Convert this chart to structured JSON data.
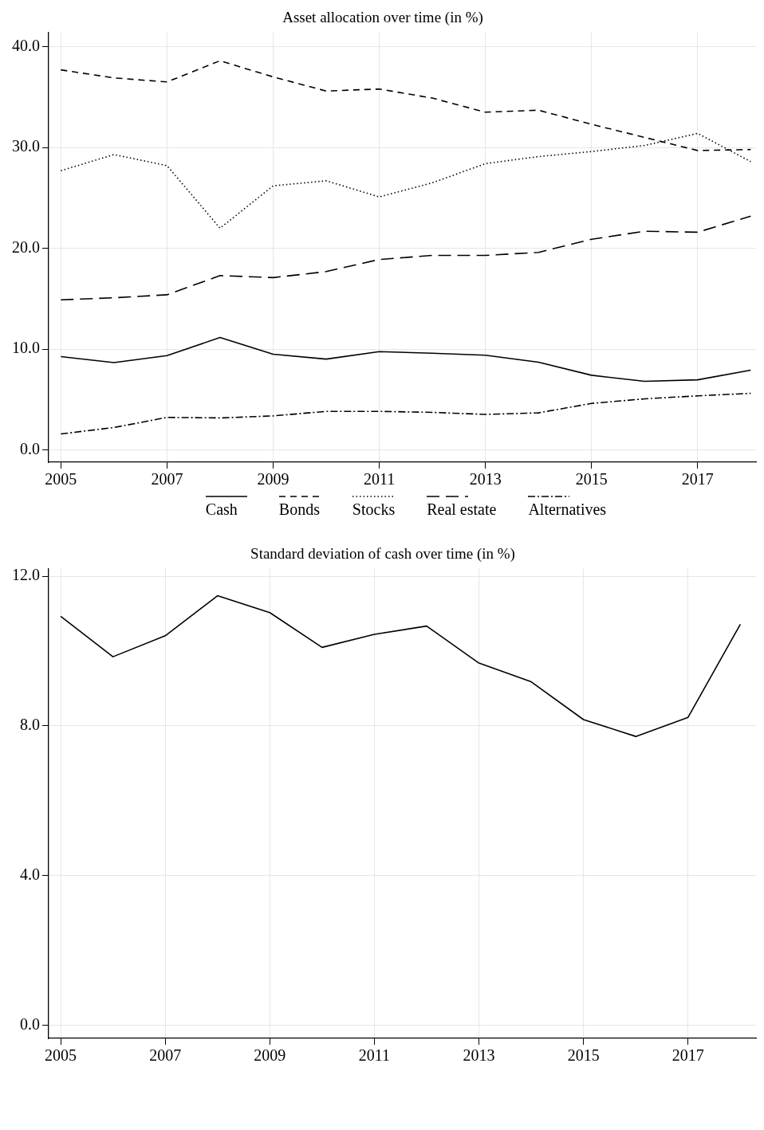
{
  "chart_data": [
    {
      "type": "line",
      "title": "Asset allocation over time (in %)",
      "x": [
        2005,
        2006,
        2007,
        2008,
        2009,
        2010,
        2011,
        2012,
        2013,
        2014,
        2015,
        2016,
        2017,
        2018
      ],
      "xlim": [
        2004.77,
        2018.1
      ],
      "xticks": [
        2005,
        2007,
        2009,
        2011,
        2013,
        2015,
        2017
      ],
      "ylim": [
        -1.2,
        41.4
      ],
      "yticks": [
        {
          "value": 0,
          "label": "0.0"
        },
        {
          "value": 10,
          "label": "10.0"
        },
        {
          "value": 20,
          "label": "20.0"
        },
        {
          "value": 30,
          "label": "30.0"
        },
        {
          "value": 40,
          "label": "40.0"
        }
      ],
      "grid": true,
      "legend": "bottom",
      "marker": "none",
      "series": [
        {
          "name": "Cash",
          "color": "#000000",
          "line_style": "solid",
          "values": [
            9.27,
            8.67,
            9.37,
            11.16,
            9.51,
            9.02,
            9.76,
            9.61,
            9.41,
            8.72,
            7.42,
            6.82,
            6.97,
            7.92
          ]
        },
        {
          "name": "Bonds",
          "color": "#000000",
          "line_style": "dashed",
          "values": [
            37.7,
            36.9,
            36.5,
            38.6,
            37.0,
            35.6,
            35.8,
            34.9,
            33.5,
            33.7,
            32.3,
            31.0,
            29.7,
            29.8
          ]
        },
        {
          "name": "Stocks",
          "color": "#000000",
          "line_style": "dotted",
          "values": [
            27.7,
            29.3,
            28.2,
            22.0,
            26.2,
            26.7,
            25.1,
            26.5,
            28.4,
            29.1,
            29.6,
            30.2,
            31.4,
            28.6
          ]
        },
        {
          "name": "Real estate",
          "color": "#000000",
          "line_style": "longdash",
          "values": [
            14.9,
            15.1,
            15.4,
            17.3,
            17.1,
            17.7,
            18.9,
            19.3,
            19.3,
            19.6,
            20.9,
            21.7,
            21.6,
            23.2
          ]
        },
        {
          "name": "Alternatives",
          "color": "#000000",
          "line_style": "dashdot",
          "values": [
            1.6,
            2.24,
            3.24,
            3.19,
            3.39,
            3.84,
            3.84,
            3.74,
            3.54,
            3.69,
            4.63,
            5.08,
            5.38,
            5.63
          ]
        }
      ]
    },
    {
      "type": "line",
      "title": "Standard deviation of cash over time (in %)",
      "x": [
        2005,
        2006,
        2007,
        2008,
        2009,
        2010,
        2011,
        2012,
        2013,
        2014,
        2015,
        2016,
        2017,
        2018
      ],
      "xlim": [
        2004.77,
        2018.3
      ],
      "xticks": [
        2005,
        2007,
        2009,
        2011,
        2013,
        2015,
        2017
      ],
      "ylim": [
        -0.35,
        12.2
      ],
      "yticks": [
        {
          "value": 0,
          "label": "0.0"
        },
        {
          "value": 4,
          "label": "4.0"
        },
        {
          "value": 8,
          "label": "8.0"
        },
        {
          "value": 12,
          "label": "12.0"
        }
      ],
      "grid": true,
      "marker": "none",
      "series": [
        {
          "color": "#000000",
          "line_style": "solid",
          "values": [
            10.93,
            9.85,
            10.41,
            11.48,
            11.03,
            10.1,
            10.45,
            10.67,
            9.68,
            9.18,
            8.17,
            7.72,
            8.23,
            10.72
          ]
        }
      ]
    }
  ]
}
